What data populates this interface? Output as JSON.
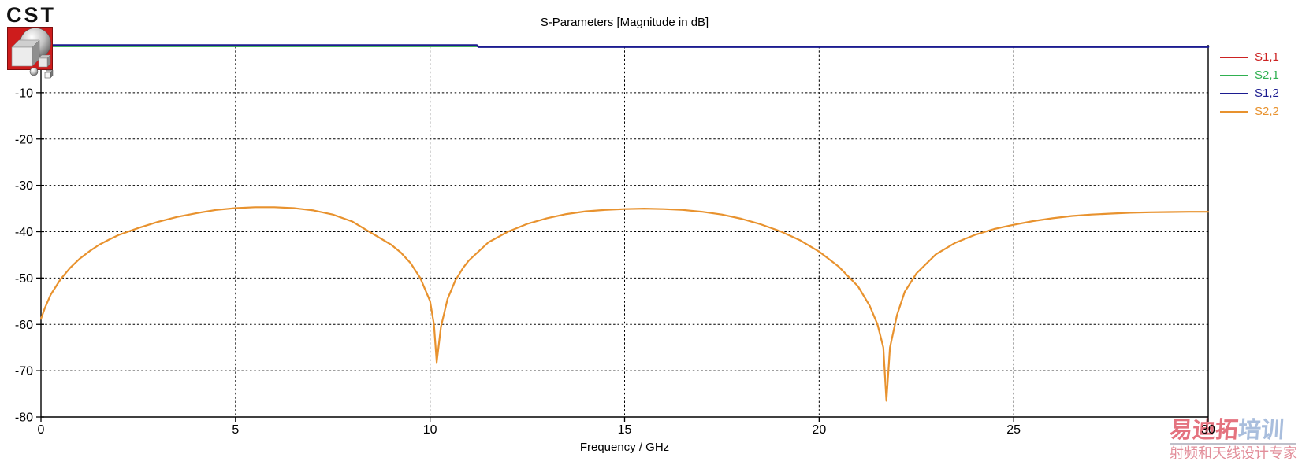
{
  "logo": {
    "brand": "CST"
  },
  "title": "S-Parameters [Magnitude in dB]",
  "xlabel": "Frequency / GHz",
  "legend": [
    {
      "label": "S1,1",
      "color": "#cc2222"
    },
    {
      "label": "S2,1",
      "color": "#2fb050"
    },
    {
      "label": "S1,2",
      "color": "#1c1c90"
    },
    {
      "label": "S2,2",
      "color": "#e8922e"
    }
  ],
  "watermark": {
    "line1_part1": "易迪拓",
    "line1_part2": "培训",
    "line2": "射频和天线设计专家"
  },
  "chart_data": {
    "type": "line",
    "title": "S-Parameters [Magnitude in dB]",
    "xlabel": "Frequency / GHz",
    "ylabel": "",
    "xlim": [
      0,
      30
    ],
    "ylim": [
      -80,
      0
    ],
    "xticks": [
      0,
      5,
      10,
      15,
      20,
      25,
      30
    ],
    "yticks": [
      -10,
      -20,
      -30,
      -40,
      -50,
      -60,
      -70,
      -80
    ],
    "grid": true,
    "grid_style": "dashed",
    "legend_position": "outside-right",
    "series": [
      {
        "name": "S1,1",
        "color": "#cc2222",
        "points": [
          [
            0,
            0
          ],
          [
            30,
            0
          ]
        ]
      },
      {
        "name": "S2,1",
        "color": "#2fb050",
        "points": [
          [
            0,
            0
          ],
          [
            30,
            0
          ]
        ]
      },
      {
        "name": "S1,2",
        "color": "#1c1c90",
        "points": [
          [
            0,
            0.25
          ],
          [
            11.2,
            0.25
          ],
          [
            11.25,
            -0.1
          ],
          [
            30,
            -0.1
          ]
        ]
      },
      {
        "name": "S2,2",
        "color": "#e8922e",
        "points": [
          [
            0,
            -58.8
          ],
          [
            0.1,
            -56.5
          ],
          [
            0.25,
            -53.6
          ],
          [
            0.5,
            -50.3
          ],
          [
            0.75,
            -47.8
          ],
          [
            1,
            -45.8
          ],
          [
            1.25,
            -44.2
          ],
          [
            1.5,
            -42.8
          ],
          [
            1.75,
            -41.7
          ],
          [
            2,
            -40.7
          ],
          [
            2.5,
            -39.2
          ],
          [
            3,
            -37.9
          ],
          [
            3.5,
            -36.8
          ],
          [
            4,
            -36.0
          ],
          [
            4.5,
            -35.3
          ],
          [
            5,
            -34.9
          ],
          [
            5.5,
            -34.7
          ],
          [
            6,
            -34.7
          ],
          [
            6.5,
            -34.9
          ],
          [
            7,
            -35.4
          ],
          [
            7.5,
            -36.3
          ],
          [
            8,
            -37.8
          ],
          [
            8.5,
            -40.3
          ],
          [
            9,
            -42.8
          ],
          [
            9.25,
            -44.5
          ],
          [
            9.5,
            -46.8
          ],
          [
            9.75,
            -50.0
          ],
          [
            10,
            -55.0
          ],
          [
            10.1,
            -60.0
          ],
          [
            10.17,
            -68.2
          ],
          [
            10.28,
            -60.5
          ],
          [
            10.45,
            -54.5
          ],
          [
            10.65,
            -50.5
          ],
          [
            10.85,
            -47.8
          ],
          [
            11,
            -46.2
          ],
          [
            11.5,
            -42.3
          ],
          [
            12,
            -40.0
          ],
          [
            12.5,
            -38.3
          ],
          [
            13,
            -37.1
          ],
          [
            13.5,
            -36.2
          ],
          [
            14,
            -35.6
          ],
          [
            14.5,
            -35.3
          ],
          [
            15,
            -35.1
          ],
          [
            15.5,
            -35.0
          ],
          [
            16,
            -35.1
          ],
          [
            16.5,
            -35.3
          ],
          [
            17,
            -35.7
          ],
          [
            17.5,
            -36.3
          ],
          [
            18,
            -37.2
          ],
          [
            18.5,
            -38.4
          ],
          [
            19,
            -39.9
          ],
          [
            19.5,
            -41.8
          ],
          [
            20,
            -44.3
          ],
          [
            20.5,
            -47.5
          ],
          [
            21,
            -51.8
          ],
          [
            21.3,
            -56.0
          ],
          [
            21.5,
            -60.0
          ],
          [
            21.65,
            -65.0
          ],
          [
            21.73,
            -76.5
          ],
          [
            21.82,
            -65.0
          ],
          [
            22,
            -58.0
          ],
          [
            22.2,
            -53.0
          ],
          [
            22.5,
            -49.0
          ],
          [
            23,
            -44.9
          ],
          [
            23.5,
            -42.4
          ],
          [
            24,
            -40.7
          ],
          [
            24.5,
            -39.4
          ],
          [
            25,
            -38.5
          ],
          [
            25.5,
            -37.7
          ],
          [
            26,
            -37.1
          ],
          [
            26.5,
            -36.6
          ],
          [
            27,
            -36.3
          ],
          [
            27.5,
            -36.1
          ],
          [
            28,
            -35.9
          ],
          [
            28.5,
            -35.8
          ],
          [
            29,
            -35.75
          ],
          [
            29.5,
            -35.7
          ],
          [
            30,
            -35.7
          ]
        ]
      }
    ]
  }
}
